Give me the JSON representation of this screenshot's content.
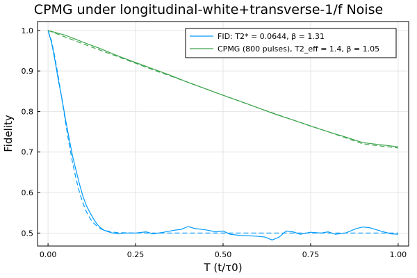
{
  "chart_data": {
    "type": "line",
    "title": "CPMG under longitudinal-white+transverse-1/f Noise",
    "xlabel": "T (t/τ0)",
    "ylabel": "Fidelity",
    "xlim": [
      -0.03,
      1.03
    ],
    "ylim": [
      0.468,
      1.022
    ],
    "x_ticks": [
      0.0,
      0.25,
      0.5,
      0.75,
      1.0
    ],
    "x_tick_labels": [
      "0.00",
      "0.25",
      "0.50",
      "0.75",
      "1.00"
    ],
    "y_ticks": [
      0.5,
      0.6,
      0.7,
      0.8,
      0.9,
      1.0
    ],
    "y_tick_labels": [
      "0.5",
      "0.6",
      "0.7",
      "0.8",
      "0.9",
      "1.0"
    ],
    "grid": true,
    "legend_position": "top-right",
    "series": [
      {
        "name": "FID: T2* = 0.0644, β = 1.31",
        "color": "#009AFA",
        "style": "solid",
        "x": [
          0.0,
          0.01,
          0.02,
          0.03,
          0.04,
          0.05,
          0.06,
          0.07,
          0.08,
          0.09,
          0.1,
          0.11,
          0.12,
          0.13,
          0.14,
          0.15,
          0.16,
          0.18,
          0.2,
          0.22,
          0.25,
          0.28,
          0.3,
          0.33,
          0.36,
          0.38,
          0.4,
          0.42,
          0.45,
          0.48,
          0.5,
          0.52,
          0.55,
          0.58,
          0.6,
          0.62,
          0.64,
          0.66,
          0.68,
          0.7,
          0.72,
          0.75,
          0.78,
          0.8,
          0.82,
          0.85,
          0.88,
          0.9,
          0.92,
          0.95,
          0.98,
          1.0
        ],
        "y": [
          1.0,
          0.97,
          0.925,
          0.875,
          0.83,
          0.78,
          0.735,
          0.69,
          0.655,
          0.62,
          0.59,
          0.567,
          0.55,
          0.535,
          0.522,
          0.513,
          0.507,
          0.501,
          0.498,
          0.5,
          0.5,
          0.503,
          0.498,
          0.502,
          0.507,
          0.509,
          0.516,
          0.511,
          0.508,
          0.503,
          0.505,
          0.497,
          0.494,
          0.493,
          0.492,
          0.49,
          0.483,
          0.49,
          0.505,
          0.503,
          0.497,
          0.502,
          0.5,
          0.503,
          0.497,
          0.5,
          0.511,
          0.515,
          0.513,
          0.505,
          0.498,
          0.497
        ]
      },
      {
        "name": "CPMG (800 pulses), T2_eff = 1.4, β = 1.05",
        "color": "#3DA44D",
        "style": "solid",
        "x": [
          0.0,
          0.05,
          0.1,
          0.15,
          0.2,
          0.25,
          0.3,
          0.35,
          0.4,
          0.45,
          0.5,
          0.55,
          0.6,
          0.65,
          0.7,
          0.75,
          0.8,
          0.85,
          0.9,
          0.95,
          1.0
        ],
        "y": [
          1.0,
          0.988,
          0.971,
          0.955,
          0.937,
          0.921,
          0.905,
          0.889,
          0.872,
          0.856,
          0.84,
          0.825,
          0.809,
          0.793,
          0.779,
          0.764,
          0.75,
          0.737,
          0.723,
          0.718,
          0.713
        ]
      },
      {
        "name": "",
        "color": "#009AFA",
        "style": "dashed",
        "x": [
          0.0,
          0.01,
          0.02,
          0.03,
          0.04,
          0.05,
          0.06,
          0.07,
          0.08,
          0.09,
          0.1,
          0.11,
          0.12,
          0.13,
          0.14,
          0.15,
          0.16,
          0.18,
          0.2,
          0.25,
          0.3,
          0.4,
          0.5,
          0.6,
          0.7,
          0.8,
          0.9,
          1.0
        ],
        "y": [
          1.0,
          0.974,
          0.932,
          0.882,
          0.828,
          0.773,
          0.721,
          0.674,
          0.634,
          0.6,
          0.573,
          0.552,
          0.536,
          0.525,
          0.517,
          0.511,
          0.507,
          0.503,
          0.501,
          0.5,
          0.5,
          0.5,
          0.5,
          0.5,
          0.5,
          0.5,
          0.5,
          0.5
        ]
      },
      {
        "name": "",
        "color": "#3DA44D",
        "style": "dashed",
        "x": [
          0.0,
          0.1,
          0.2,
          0.3,
          0.4,
          0.5,
          0.6,
          0.7,
          0.8,
          0.9,
          1.0
        ],
        "y": [
          1.0,
          0.967,
          0.935,
          0.903,
          0.872,
          0.84,
          0.809,
          0.779,
          0.75,
          0.72,
          0.71
        ]
      }
    ]
  }
}
